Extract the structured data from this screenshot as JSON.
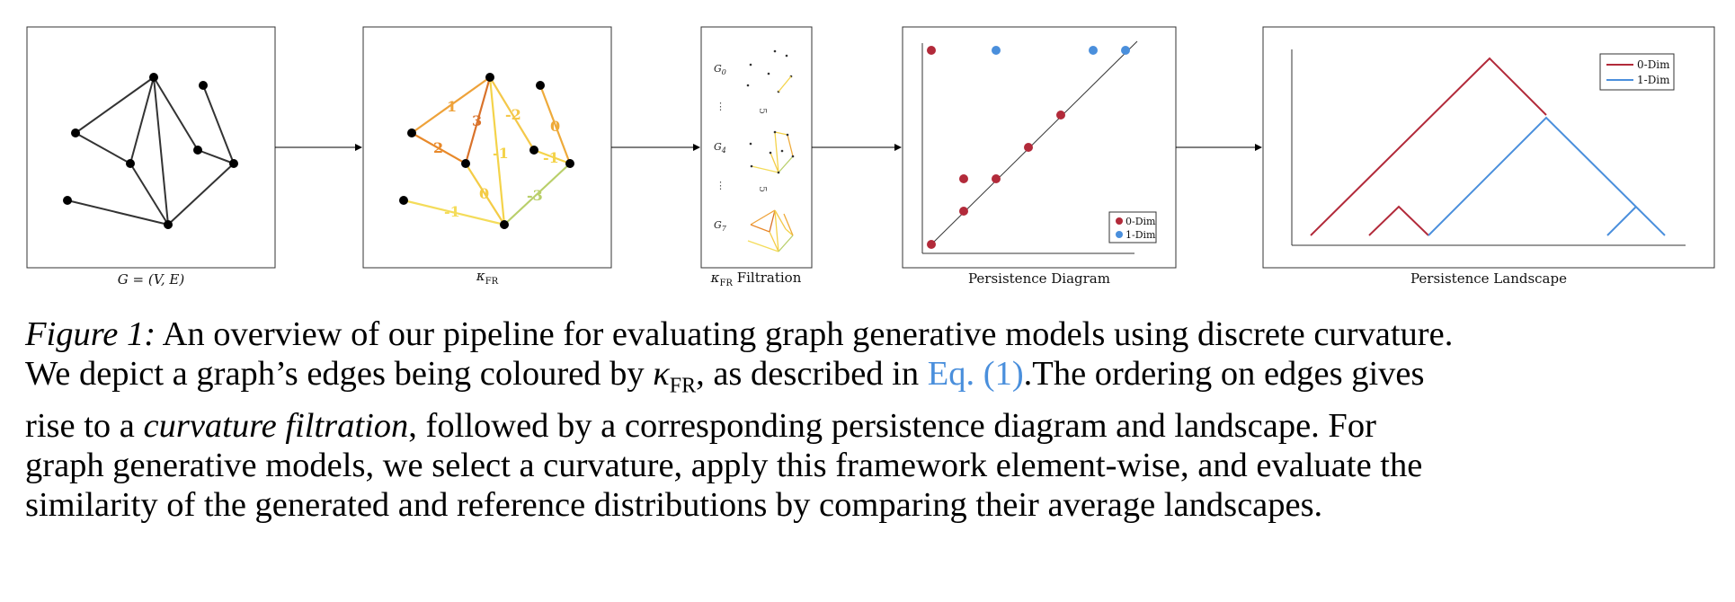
{
  "panels": {
    "graph": {
      "caption_main": "G = (V, E)"
    },
    "curvature": {
      "caption_main": "κ",
      "caption_sub": "FR"
    },
    "filtration": {
      "caption_main": "κ",
      "caption_sub": "FR",
      "caption_rest": " Filtration",
      "labels": [
        "G",
        "G",
        "G"
      ],
      "label_subs": [
        "0",
        "4",
        "7"
      ],
      "dots": "⋮",
      "rot5": "5"
    },
    "diagram": {
      "caption": "Persistence Diagram",
      "legend": [
        "0-Dim",
        "1-Dim"
      ]
    },
    "landscape": {
      "caption": "Persistence Landscape",
      "legend": [
        "0-Dim",
        "1-Dim"
      ]
    }
  },
  "edge_labels": [
    "1",
    "2",
    "3",
    "-2",
    "0",
    "-1",
    "-1",
    "0",
    "-3",
    "-1"
  ],
  "colors": {
    "red": "#b22a3a",
    "blue": "#4a8fdc",
    "orange": "#e8912a",
    "yellow": "#f4d34a",
    "green": "#b9cf6a"
  },
  "caption": {
    "lead": "Figure 1:",
    "l1": " An overview of our pipeline for evaluating graph generative models using discrete curvature.",
    "l2a": "We depict a graph’s edges being coloured by ",
    "l2k": "κ",
    "l2sub": "FR",
    "l2b": ", as described in ",
    "l2link": "Eq. (1)",
    "l2c": ".The ordering on edges gives",
    "l3a": "rise to a ",
    "l3i": "curvature filtration",
    "l3b": ", followed by a corresponding persistence diagram and landscape. For",
    "l4": "graph generative models, we select a curvature, apply this framework element-wise, and evaluate the",
    "l5": "similarity of the generated and reference distributions by comparing their average landscapes."
  }
}
